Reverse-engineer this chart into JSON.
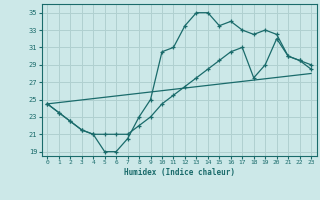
{
  "xlabel": "Humidex (Indice chaleur)",
  "bg_color": "#cce8e8",
  "grid_color": "#b0d0d0",
  "line_color": "#1a6b6b",
  "xlim": [
    -0.5,
    23.5
  ],
  "ylim": [
    18.5,
    36.0
  ],
  "yticks": [
    19,
    21,
    23,
    25,
    27,
    29,
    31,
    33,
    35
  ],
  "xticks": [
    0,
    1,
    2,
    3,
    4,
    5,
    6,
    7,
    8,
    9,
    10,
    11,
    12,
    13,
    14,
    15,
    16,
    17,
    18,
    19,
    20,
    21,
    22,
    23
  ],
  "line1_x": [
    0,
    1,
    2,
    3,
    4,
    5,
    6,
    7,
    8,
    9,
    10,
    11,
    12,
    13,
    14,
    15,
    16,
    17,
    18,
    19,
    20,
    21,
    22,
    23
  ],
  "line1_y": [
    24.5,
    23.5,
    22.5,
    21.5,
    21.0,
    19.0,
    19.0,
    20.5,
    23.0,
    25.0,
    30.5,
    31.0,
    33.5,
    35.0,
    35.0,
    33.5,
    34.0,
    33.0,
    32.5,
    33.0,
    32.5,
    30.0,
    29.5,
    29.0
  ],
  "line2_x": [
    0,
    1,
    2,
    3,
    4,
    5,
    6,
    7,
    8,
    9,
    10,
    11,
    12,
    13,
    14,
    15,
    16,
    17,
    18,
    19,
    20,
    21,
    22,
    23
  ],
  "line2_y": [
    24.5,
    23.5,
    22.5,
    21.5,
    21.0,
    21.0,
    21.0,
    21.0,
    22.0,
    23.0,
    24.5,
    25.5,
    26.5,
    27.5,
    28.5,
    29.5,
    30.5,
    31.0,
    27.5,
    29.0,
    32.0,
    30.0,
    29.5,
    28.5
  ],
  "line3_x": [
    0,
    23
  ],
  "line3_y": [
    24.5,
    28.0
  ]
}
